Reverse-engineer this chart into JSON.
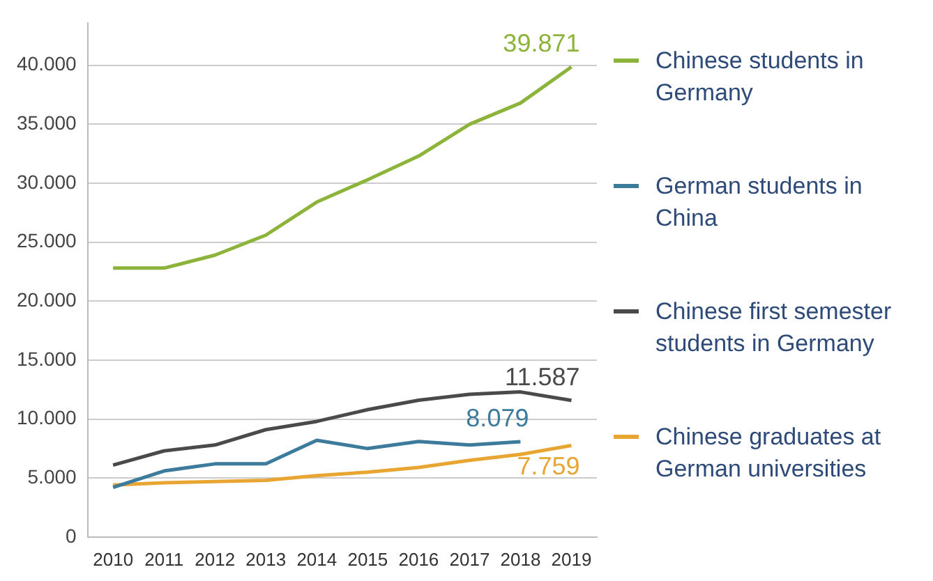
{
  "chart_data": {
    "type": "line",
    "categories": [
      "2010",
      "2011",
      "2012",
      "2013",
      "2014",
      "2015",
      "2016",
      "2017",
      "2018",
      "2019"
    ],
    "series": [
      {
        "name": "Chinese students in Germany",
        "color": "#8db43a",
        "values": [
          22800,
          22800,
          23900,
          25600,
          28400,
          30300,
          32300,
          35000,
          36800,
          39871
        ]
      },
      {
        "name": "German students in China",
        "color": "#3d7b9c",
        "values": [
          4200,
          5600,
          6200,
          6200,
          8200,
          7500,
          8100,
          7800,
          8079,
          null
        ]
      },
      {
        "name": "Chinese first semester students in Germany",
        "color": "#4a4a4a",
        "values": [
          6100,
          7300,
          7800,
          9100,
          9800,
          10800,
          11600,
          12100,
          12300,
          11587
        ]
      },
      {
        "name": "Chinese graduates at German universities",
        "color": "#e8a532",
        "values": [
          4400,
          4600,
          4700,
          4800,
          5200,
          5500,
          5900,
          6500,
          7000,
          7759
        ]
      }
    ],
    "annotations": [
      {
        "text": "39.871",
        "x": "2019",
        "y": 39871
      },
      {
        "text": "8.079",
        "x": "2018",
        "y": 8079
      },
      {
        "text": "11.587",
        "x": "2019",
        "y": 11587
      },
      {
        "text": "7.759",
        "x": "2019",
        "y": 7759
      }
    ],
    "ylim": [
      0,
      43600
    ],
    "yticks": [
      {
        "value": 0,
        "label": "0"
      },
      {
        "value": 5000,
        "label": "5.000"
      },
      {
        "value": 10000,
        "label": "10.000"
      },
      {
        "value": 15000,
        "label": "15.000"
      },
      {
        "value": 20000,
        "label": "20.000"
      },
      {
        "value": 25000,
        "label": "25.000"
      },
      {
        "value": 30000,
        "label": "30.000"
      },
      {
        "value": 35000,
        "label": "35.000"
      },
      {
        "value": 40000,
        "label": "40.000"
      }
    ],
    "grid": "y",
    "legend": "right",
    "marker": "none",
    "line_style": "solid"
  }
}
